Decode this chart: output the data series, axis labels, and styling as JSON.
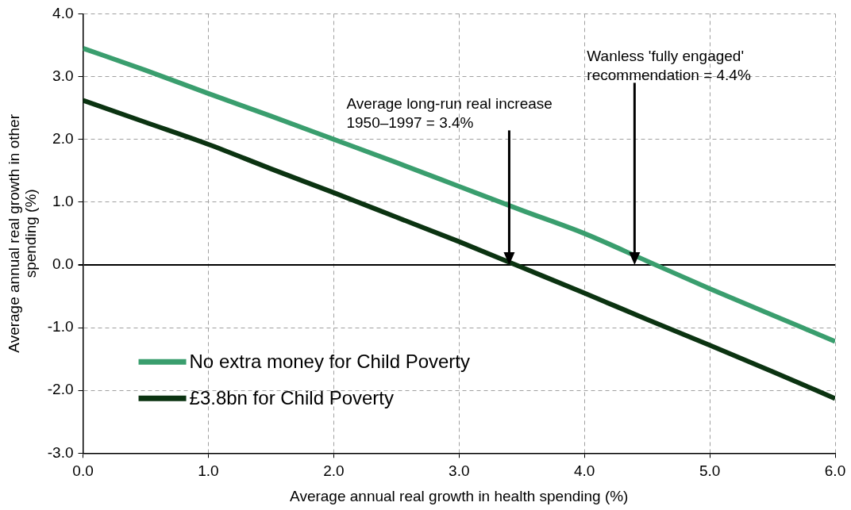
{
  "chart_data": {
    "type": "line",
    "xlabel": "Average annual real growth in health spending (%)",
    "ylabel": "Average annual real growth in other spending (%)",
    "x": [
      0,
      0.5,
      1,
      1.5,
      2,
      2.5,
      3,
      3.5,
      4,
      4.5,
      5,
      5.5,
      6
    ],
    "series": [
      {
        "name": "No extra money for Child Poverty",
        "color": "#3a9e6e",
        "values": [
          3.45,
          3.1,
          2.73,
          2.37,
          2.0,
          1.63,
          1.25,
          0.87,
          0.5,
          0.06,
          -0.38,
          -0.8,
          -1.22
        ]
      },
      {
        "name": "£3.8bn for Child Poverty",
        "color": "#0b3311",
        "values": [
          2.62,
          2.27,
          1.92,
          1.53,
          1.15,
          0.76,
          0.37,
          -0.04,
          -0.45,
          -0.87,
          -1.28,
          -1.7,
          -2.13
        ]
      }
    ],
    "xlim": [
      0,
      6
    ],
    "xticks": [
      {
        "value": 0,
        "label": "0.0"
      },
      {
        "value": 1,
        "label": "1.0"
      },
      {
        "value": 2,
        "label": "2.0"
      },
      {
        "value": 3,
        "label": "3.0"
      },
      {
        "value": 4,
        "label": "4.0"
      },
      {
        "value": 5,
        "label": "5.0"
      },
      {
        "value": 6,
        "label": "6.0"
      }
    ],
    "ylim": [
      -3,
      4
    ],
    "yticks": [
      {
        "value": -3,
        "label": "-3.0"
      },
      {
        "value": -2,
        "label": "-2.0"
      },
      {
        "value": -1,
        "label": "-1.0"
      },
      {
        "value": 0,
        "label": "0.0"
      },
      {
        "value": 1,
        "label": "1.0"
      },
      {
        "value": 2,
        "label": "2.0"
      },
      {
        "value": 3,
        "label": "3.0"
      },
      {
        "value": 4,
        "label": "4.0"
      }
    ],
    "ref_lines": [
      {
        "axis": "x",
        "value": 3.4,
        "label": "Average long-run real increase\n1950–1997 = 3.4%"
      },
      {
        "axis": "x",
        "value": 4.4,
        "label": "Wanless 'fully engaged'\nrecommendation = 4.4%"
      }
    ],
    "grid": true,
    "legend": "bottom left",
    "marker": "none",
    "line_style": "solid"
  }
}
